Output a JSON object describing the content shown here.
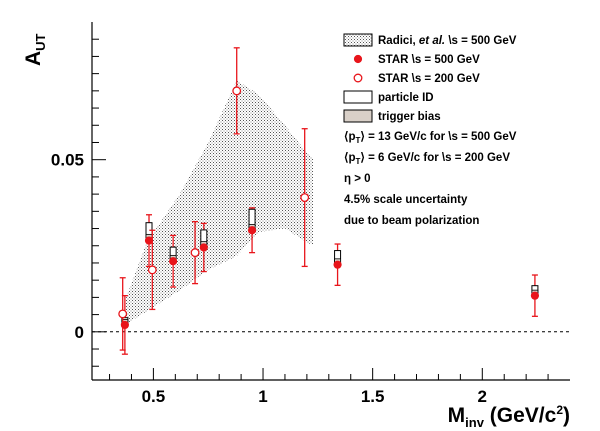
{
  "chart_data": {
    "type": "scatter",
    "title": "",
    "xlabel": "M",
    "xlabel_sub": "inv",
    "xlabel_unit": " (GeV/c",
    "xlabel_unit_sup": "2",
    "xlabel_unit_end": ")",
    "ylabel": "A",
    "ylabel_sub": "UT",
    "xlim": [
      0.22,
      2.4
    ],
    "ylim": [
      -0.014,
      0.09
    ],
    "x_ticks": [
      0.5,
      1,
      1.5,
      2
    ],
    "x_tick_labels": [
      "0.5",
      "1",
      "1.5",
      "2"
    ],
    "y_ticks": [
      0,
      0.05
    ],
    "y_tick_labels": [
      "0",
      "0.05"
    ],
    "zero_line": true,
    "colors": {
      "star": "#e8151b",
      "band_fill": "#bfbfbf",
      "sys_box_500": "#ffffff",
      "trigger_fill": "#d9d0c8"
    },
    "band": {
      "name": "Radici, et al. \\s = 500 GeV",
      "x": [
        0.37,
        0.47,
        0.62,
        0.75,
        0.88,
        0.98,
        1.1,
        1.2,
        1.23
      ],
      "upper": [
        0.009,
        0.026,
        0.04,
        0.055,
        0.073,
        0.069,
        0.06,
        0.052,
        0.05
      ],
      "lower": [
        0.002,
        0.006,
        0.012,
        0.018,
        0.022,
        0.029,
        0.03,
        0.026,
        0.025
      ]
    },
    "series": [
      {
        "name": "STAR \\s = 500 GeV",
        "marker": "filled-circle",
        "points": [
          {
            "x": 0.37,
            "y": 0.002,
            "err": 0.0085,
            "sys_particle": 0.0005,
            "sys_trigger": 0.0003
          },
          {
            "x": 0.48,
            "y": 0.0265,
            "err": 0.0075,
            "sys_particle": 0.0036,
            "sys_trigger": 0.0005
          },
          {
            "x": 0.59,
            "y": 0.0205,
            "err": 0.0075,
            "sys_particle": 0.0025,
            "sys_trigger": 0.0004
          },
          {
            "x": 0.73,
            "y": 0.0245,
            "err": 0.007,
            "sys_particle": 0.0035,
            "sys_trigger": 0.0004
          },
          {
            "x": 0.95,
            "y": 0.0295,
            "err": 0.0065,
            "sys_particle": 0.0045,
            "sys_trigger": 0.0004
          },
          {
            "x": 1.34,
            "y": 0.0195,
            "err": 0.006,
            "sys_particle": 0.0025,
            "sys_trigger": 0.0004
          },
          {
            "x": 2.24,
            "y": 0.0105,
            "err": 0.006,
            "sys_particle": 0.0013,
            "sys_trigger": 0.0003
          }
        ]
      },
      {
        "name": "STAR \\s = 200 GeV",
        "marker": "open-circle",
        "points": [
          {
            "x": 0.36,
            "y": 0.0052,
            "err": 0.0105
          },
          {
            "x": 0.495,
            "y": 0.018,
            "err": 0.0115
          },
          {
            "x": 0.69,
            "y": 0.023,
            "err": 0.009
          },
          {
            "x": 0.88,
            "y": 0.07,
            "err": 0.0125
          },
          {
            "x": 1.19,
            "y": 0.039,
            "err": 0.02
          }
        ]
      }
    ],
    "legend": {
      "placement": "top-right",
      "entries": [
        {
          "label_pre": "Radici, ",
          "label_ital": "et al.",
          "label_post": " \\s = 500 GeV",
          "kind": "band"
        },
        {
          "label": "STAR \\s = 500 GeV",
          "kind": "filled-circle"
        },
        {
          "label": "STAR \\s = 200 GeV",
          "kind": "open-circle"
        },
        {
          "label": "particle ID",
          "kind": "open-box"
        },
        {
          "label": "trigger bias",
          "kind": "filled-box"
        }
      ]
    },
    "annotations": [
      {
        "pre": "⟨p",
        "sub": "T",
        "post": "⟩ = 13 GeV/c for \\s = 500 GeV"
      },
      {
        "pre": "⟨p",
        "sub": "T",
        "post": "⟩ =  6 GeV/c for \\s = 200 GeV"
      },
      {
        "pre": "η > 0",
        "sub": "",
        "post": ""
      },
      {
        "pre": "4.5% scale uncertainty",
        "sub": "",
        "post": ""
      },
      {
        "pre": "due to beam polarization",
        "sub": "",
        "post": ""
      }
    ]
  }
}
